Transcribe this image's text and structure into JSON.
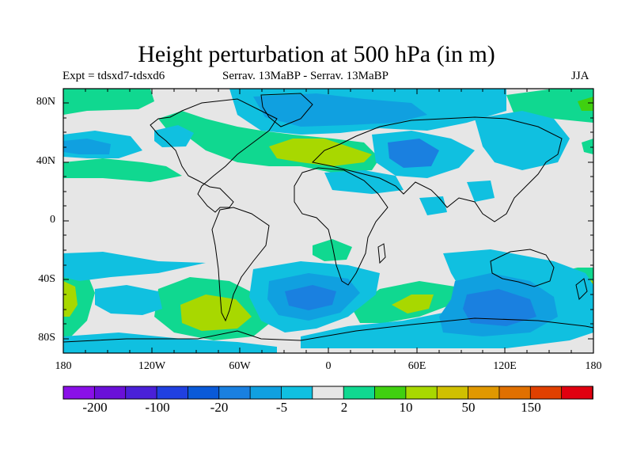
{
  "title": "Height perturbation at 500 hPa (in m)",
  "subtitle_left": "Expt = tdsxd7-tdsxd6",
  "subtitle_center": "Serrav.   13MaBP - Serrav.   13MaBP",
  "subtitle_right": "JJA",
  "latitude_labels": [
    "80N",
    "40N",
    "0",
    "40S",
    "80S"
  ],
  "longitude_labels": [
    "180",
    "120W",
    "60W",
    "0",
    "60E",
    "120E",
    "180"
  ],
  "colorbar": {
    "labels": [
      "-200",
      "-100",
      "-20",
      "-5",
      "2",
      "10",
      "50",
      "150"
    ],
    "colors": [
      "#8a10e8",
      "#6a10d8",
      "#4a20d8",
      "#2040e0",
      "#0a5ad8",
      "#1a80e0",
      "#10a0e0",
      "#10c0e0",
      "#e6e6e6",
      "#10d890",
      "#40d010",
      "#a8d800",
      "#d0c000",
      "#e09800",
      "#e07000",
      "#e04000",
      "#e00010"
    ]
  },
  "palette": {
    "background": "#e6e6e6",
    "light_green": "#10d890",
    "green": "#40d010",
    "yellow_green": "#a8d800",
    "cyan": "#10c0e0",
    "light_blue": "#10a0e0",
    "blue": "#1a80e0",
    "dark_blue": "#0a5ad8"
  }
}
